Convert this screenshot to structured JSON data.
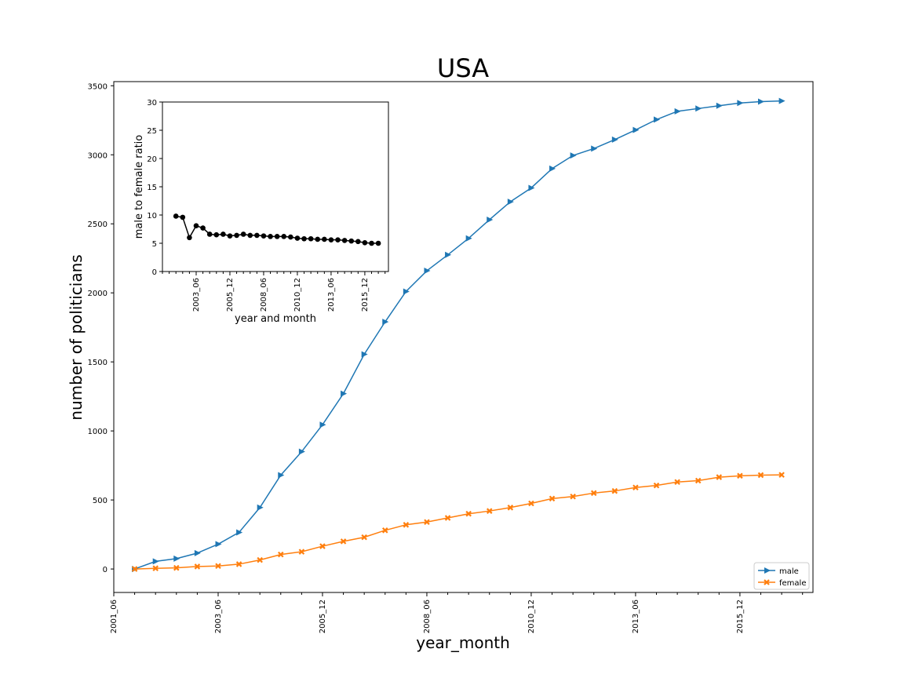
{
  "chart_data": [
    {
      "type": "line",
      "title": "USA",
      "xlabel": "year_month",
      "ylabel": "number of politicians",
      "x_tick_labels": [
        "2001_06",
        "2003_06",
        "2005_12",
        "2008_06",
        "2010_12",
        "2013_06",
        "2015_12"
      ],
      "yticks": [
        0,
        500,
        1000,
        1500,
        2000,
        2500,
        3000,
        3500
      ],
      "ylim": [
        -170,
        3530
      ],
      "xlim": [
        0,
        33.5
      ],
      "grid": false,
      "legend": "bottom-right",
      "x": [
        1,
        2,
        3,
        4,
        5,
        6,
        7,
        8,
        9,
        10,
        11,
        12,
        13,
        14,
        15,
        16,
        17,
        18,
        19,
        20,
        21,
        22,
        23,
        24,
        25,
        26,
        27,
        28,
        29,
        30,
        31,
        32
      ],
      "series": [
        {
          "name": "male",
          "color": "#1f77b4",
          "marker": "triangle-right",
          "values": [
            0,
            55,
            75,
            115,
            180,
            265,
            445,
            680,
            850,
            1045,
            1270,
            1555,
            1790,
            2010,
            2160,
            2275,
            2395,
            2530,
            2660,
            2760,
            2900,
            2995,
            3045,
            3110,
            3180,
            3255,
            3315,
            3335,
            3355,
            3375,
            3385,
            3390
          ]
        },
        {
          "name": "female",
          "color": "#ff7f0e",
          "marker": "x",
          "values": [
            0,
            5,
            8,
            18,
            22,
            35,
            65,
            105,
            125,
            165,
            200,
            230,
            280,
            320,
            340,
            370,
            400,
            420,
            445,
            475,
            510,
            525,
            550,
            565,
            590,
            605,
            630,
            640,
            665,
            675,
            680,
            682
          ]
        }
      ]
    },
    {
      "type": "line",
      "title": "",
      "xlabel": "year and month",
      "ylabel": "male to female ratio",
      "x_tick_labels": [
        "2003_06",
        "2005_12",
        "2008_06",
        "2010_12",
        "2013_06",
        "2015_12"
      ],
      "yticks": [
        0,
        5,
        10,
        15,
        20,
        25,
        30
      ],
      "ylim": [
        0,
        30
      ],
      "xlim": [
        0,
        33.5
      ],
      "grid": false,
      "x": [
        2,
        3,
        4,
        5,
        6,
        7,
        8,
        9,
        10,
        11,
        12,
        13,
        14,
        15,
        16,
        17,
        18,
        19,
        20,
        21,
        22,
        23,
        24,
        25,
        26,
        27,
        28,
        29,
        30,
        31,
        32
      ],
      "series": [
        {
          "name": "",
          "color": "#000000",
          "marker": "circle",
          "values": [
            9.8,
            9.6,
            6.0,
            8.1,
            7.7,
            6.6,
            6.5,
            6.6,
            6.3,
            6.4,
            6.6,
            6.4,
            6.4,
            6.3,
            6.2,
            6.2,
            6.2,
            6.1,
            5.9,
            5.8,
            5.8,
            5.7,
            5.7,
            5.6,
            5.6,
            5.5,
            5.4,
            5.3,
            5.1,
            5.0,
            5.0
          ]
        }
      ]
    }
  ]
}
